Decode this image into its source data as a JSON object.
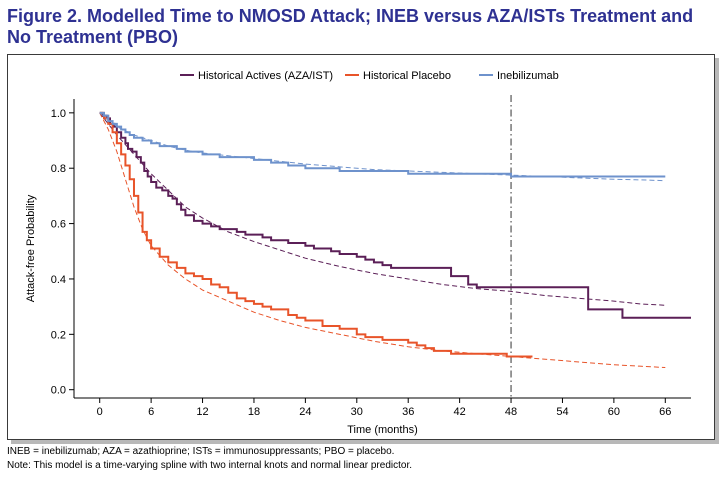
{
  "title": "Figure 2. Modelled Time to NMOSD Attack; INEB versus AZA/ISTs Treatment and No Treatment (PBO)",
  "footnotes": [
    "INEB = inebilizumab; AZA = azathioprine; ISTs = immunosuppressants; PBO = placebo.",
    "Note: This model is a time-varying spline with two internal knots and normal linear predictor."
  ],
  "chart_data": {
    "type": "line",
    "xlabel": "Time (months)",
    "ylabel": "Attack-free Probability",
    "xlim": [
      -3,
      69
    ],
    "ylim": [
      -0.03,
      1.05
    ],
    "xticks": [
      0,
      6,
      12,
      18,
      24,
      30,
      36,
      42,
      48,
      54,
      60,
      66
    ],
    "yticks": [
      0.0,
      0.2,
      0.4,
      0.6,
      0.8,
      1.0
    ],
    "ytick_labels": [
      "0.0",
      "0.2",
      "0.4",
      "0.6",
      "0.8",
      "1.0"
    ],
    "reference_line_x": 48,
    "legend_position": "top",
    "grid": false,
    "series": [
      {
        "name": "Historical Actives (AZA/IST)",
        "color": "#5b1f57",
        "observed_step": [
          [
            0,
            1.0
          ],
          [
            0.3,
            0.99
          ],
          [
            0.8,
            0.98
          ],
          [
            1.2,
            0.96
          ],
          [
            1.7,
            0.95
          ],
          [
            2,
            0.93
          ],
          [
            2.5,
            0.91
          ],
          [
            3,
            0.89
          ],
          [
            3.3,
            0.87
          ],
          [
            3.8,
            0.86
          ],
          [
            4.3,
            0.84
          ],
          [
            4.8,
            0.82
          ],
          [
            5.2,
            0.79
          ],
          [
            5.6,
            0.77
          ],
          [
            6,
            0.75
          ],
          [
            6.6,
            0.73
          ],
          [
            7.3,
            0.72
          ],
          [
            8,
            0.7
          ],
          [
            8.5,
            0.69
          ],
          [
            9,
            0.67
          ],
          [
            9.5,
            0.65
          ],
          [
            10,
            0.63
          ],
          [
            11,
            0.61
          ],
          [
            12,
            0.6
          ],
          [
            13,
            0.59
          ],
          [
            14,
            0.58
          ],
          [
            16,
            0.57
          ],
          [
            17,
            0.56
          ],
          [
            19,
            0.55
          ],
          [
            20,
            0.54
          ],
          [
            22,
            0.53
          ],
          [
            24,
            0.52
          ],
          [
            25,
            0.51
          ],
          [
            27,
            0.5
          ],
          [
            28,
            0.49
          ],
          [
            30,
            0.48
          ],
          [
            31,
            0.47
          ],
          [
            32,
            0.46
          ],
          [
            33,
            0.45
          ],
          [
            34,
            0.44
          ],
          [
            36,
            0.44
          ],
          [
            41,
            0.41
          ],
          [
            43,
            0.38
          ],
          [
            44,
            0.37
          ],
          [
            46,
            0.37
          ],
          [
            51,
            0.37
          ],
          [
            56.5,
            0.37
          ],
          [
            57,
            0.29
          ],
          [
            61,
            0.26
          ],
          [
            69,
            0.26
          ]
        ],
        "model_fit": [
          [
            0,
            1.0
          ],
          [
            2,
            0.92
          ],
          [
            4,
            0.85
          ],
          [
            6,
            0.78
          ],
          [
            8,
            0.72
          ],
          [
            10,
            0.66
          ],
          [
            12,
            0.62
          ],
          [
            15,
            0.57
          ],
          [
            18,
            0.535
          ],
          [
            21,
            0.505
          ],
          [
            24,
            0.475
          ],
          [
            28,
            0.445
          ],
          [
            32,
            0.42
          ],
          [
            36,
            0.4
          ],
          [
            40,
            0.38
          ],
          [
            44,
            0.365
          ],
          [
            48,
            0.355
          ],
          [
            52,
            0.34
          ],
          [
            56,
            0.33
          ],
          [
            60,
            0.32
          ],
          [
            63,
            0.31
          ],
          [
            66,
            0.305
          ]
        ]
      },
      {
        "name": "Historical Placebo",
        "color": "#e8542a",
        "observed_step": [
          [
            0,
            1.0
          ],
          [
            0.5,
            0.98
          ],
          [
            1,
            0.96
          ],
          [
            1.5,
            0.93
          ],
          [
            2,
            0.89
          ],
          [
            2.5,
            0.85
          ],
          [
            3,
            0.81
          ],
          [
            3.5,
            0.76
          ],
          [
            4,
            0.7
          ],
          [
            4.5,
            0.64
          ],
          [
            5,
            0.57
          ],
          [
            5.5,
            0.54
          ],
          [
            6,
            0.51
          ],
          [
            7,
            0.48
          ],
          [
            8,
            0.46
          ],
          [
            9,
            0.44
          ],
          [
            10,
            0.42
          ],
          [
            11,
            0.41
          ],
          [
            12,
            0.4
          ],
          [
            13,
            0.38
          ],
          [
            14,
            0.37
          ],
          [
            15,
            0.35
          ],
          [
            16,
            0.33
          ],
          [
            17,
            0.32
          ],
          [
            18,
            0.31
          ],
          [
            19,
            0.3
          ],
          [
            20,
            0.29
          ],
          [
            22,
            0.27
          ],
          [
            23,
            0.26
          ],
          [
            24,
            0.25
          ],
          [
            26,
            0.23
          ],
          [
            28,
            0.22
          ],
          [
            30,
            0.2
          ],
          [
            31,
            0.19
          ],
          [
            33,
            0.18
          ],
          [
            36,
            0.17
          ],
          [
            37,
            0.16
          ],
          [
            38,
            0.15
          ],
          [
            39,
            0.14
          ],
          [
            41,
            0.13
          ],
          [
            46,
            0.13
          ],
          [
            47.5,
            0.12
          ],
          [
            49,
            0.12
          ],
          [
            50.5,
            0.12
          ]
        ],
        "model_fit": [
          [
            0,
            1.0
          ],
          [
            1,
            0.94
          ],
          [
            2,
            0.86
          ],
          [
            3,
            0.76
          ],
          [
            4,
            0.66
          ],
          [
            5,
            0.58
          ],
          [
            6,
            0.52
          ],
          [
            8,
            0.45
          ],
          [
            10,
            0.4
          ],
          [
            12,
            0.36
          ],
          [
            15,
            0.32
          ],
          [
            18,
            0.28
          ],
          [
            21,
            0.25
          ],
          [
            24,
            0.225
          ],
          [
            28,
            0.2
          ],
          [
            32,
            0.175
          ],
          [
            36,
            0.155
          ],
          [
            40,
            0.14
          ],
          [
            44,
            0.13
          ],
          [
            48,
            0.12
          ],
          [
            52,
            0.11
          ],
          [
            56,
            0.1
          ],
          [
            60,
            0.09
          ],
          [
            63,
            0.085
          ],
          [
            66,
            0.08
          ]
        ]
      },
      {
        "name": "Inebilizumab",
        "color": "#6e92cc",
        "observed_step": [
          [
            0,
            1.0
          ],
          [
            0.5,
            0.99
          ],
          [
            1,
            0.97
          ],
          [
            1.5,
            0.96
          ],
          [
            2,
            0.95
          ],
          [
            2.5,
            0.94
          ],
          [
            3,
            0.93
          ],
          [
            3.5,
            0.92
          ],
          [
            4,
            0.91
          ],
          [
            5,
            0.9
          ],
          [
            6,
            0.89
          ],
          [
            7,
            0.88
          ],
          [
            8,
            0.88
          ],
          [
            9,
            0.87
          ],
          [
            10,
            0.86
          ],
          [
            11,
            0.86
          ],
          [
            12,
            0.85
          ],
          [
            14,
            0.84
          ],
          [
            16,
            0.84
          ],
          [
            18,
            0.83
          ],
          [
            20,
            0.82
          ],
          [
            22,
            0.81
          ],
          [
            24,
            0.8
          ],
          [
            26,
            0.8
          ],
          [
            28,
            0.79
          ],
          [
            30,
            0.79
          ],
          [
            36,
            0.78
          ],
          [
            42,
            0.78
          ],
          [
            47,
            0.78
          ],
          [
            48,
            0.77
          ],
          [
            54,
            0.77
          ],
          [
            60,
            0.77
          ],
          [
            66,
            0.77
          ]
        ],
        "model_fit": [
          [
            0,
            1.0
          ],
          [
            2,
            0.95
          ],
          [
            4,
            0.92
          ],
          [
            6,
            0.9
          ],
          [
            8,
            0.88
          ],
          [
            10,
            0.865
          ],
          [
            12,
            0.855
          ],
          [
            15,
            0.845
          ],
          [
            18,
            0.835
          ],
          [
            21,
            0.825
          ],
          [
            24,
            0.815
          ],
          [
            28,
            0.805
          ],
          [
            32,
            0.795
          ],
          [
            36,
            0.79
          ],
          [
            40,
            0.785
          ],
          [
            44,
            0.78
          ],
          [
            48,
            0.775
          ],
          [
            52,
            0.77
          ],
          [
            56,
            0.765
          ],
          [
            60,
            0.76
          ],
          [
            63,
            0.758
          ],
          [
            66,
            0.755
          ]
        ]
      }
    ]
  }
}
